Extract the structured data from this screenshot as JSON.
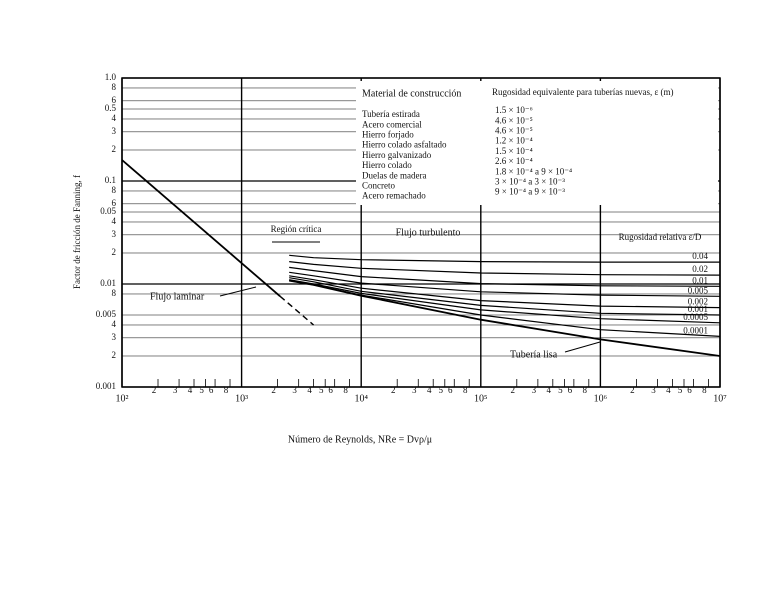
{
  "chart_data": {
    "type": "line",
    "x_label": "Número de Reynolds, NRe = Dvρ/μ",
    "y_label": "Factor de fricción de Fanning, f",
    "xlim": [
      100,
      10000000
    ],
    "ylim": [
      0.001,
      1
    ],
    "log_x": true,
    "log_y": true,
    "grid": true,
    "xticks": [
      {
        "value": 100,
        "label": "10²"
      },
      {
        "value": 200,
        "label": "2"
      },
      {
        "value": 300,
        "label": "3"
      },
      {
        "value": 400,
        "label": "4"
      },
      {
        "value": 500,
        "label": "5"
      },
      {
        "value": 600,
        "label": "6"
      },
      {
        "value": 800,
        "label": "8"
      },
      {
        "value": 1000,
        "label": "10³"
      },
      {
        "value": 2000,
        "label": "2"
      },
      {
        "value": 3000,
        "label": "3"
      },
      {
        "value": 4000,
        "label": "4"
      },
      {
        "value": 5000,
        "label": "5"
      },
      {
        "value": 6000,
        "label": "6"
      },
      {
        "value": 8000,
        "label": "8"
      },
      {
        "value": 10000,
        "label": "10⁴"
      },
      {
        "value": 20000,
        "label": "2"
      },
      {
        "value": 30000,
        "label": "3"
      },
      {
        "value": 40000,
        "label": "4"
      },
      {
        "value": 50000,
        "label": "5"
      },
      {
        "value": 60000,
        "label": "6"
      },
      {
        "value": 80000,
        "label": "8"
      },
      {
        "value": 100000,
        "label": "10⁵"
      },
      {
        "value": 200000,
        "label": "2"
      },
      {
        "value": 300000,
        "label": "3"
      },
      {
        "value": 400000,
        "label": "4"
      },
      {
        "value": 500000,
        "label": "5"
      },
      {
        "value": 600000,
        "label": "6"
      },
      {
        "value": 800000,
        "label": "8"
      },
      {
        "value": 1000000,
        "label": "10⁶"
      },
      {
        "value": 2000000,
        "label": "2"
      },
      {
        "value": 3000000,
        "label": "3"
      },
      {
        "value": 4000000,
        "label": "4"
      },
      {
        "value": 5000000,
        "label": "5"
      },
      {
        "value": 6000000,
        "label": "6"
      },
      {
        "value": 8000000,
        "label": "8"
      },
      {
        "value": 10000000,
        "label": "10⁷"
      }
    ],
    "yticks": [
      {
        "value": 1,
        "label": "1.0"
      },
      {
        "value": 0.8,
        "label": "8"
      },
      {
        "value": 0.6,
        "label": "6"
      },
      0.5,
      {
        "value": 0.4,
        "label": "4"
      },
      {
        "value": 0.3,
        "label": "3"
      },
      {
        "value": 0.2,
        "label": "2"
      },
      0.1,
      {
        "value": 0.08,
        "label": "8"
      },
      {
        "value": 0.06,
        "label": "6"
      },
      0.05,
      {
        "value": 0.04,
        "label": "4"
      },
      {
        "value": 0.03,
        "label": "3"
      },
      {
        "value": 0.02,
        "label": "2"
      },
      0.01,
      {
        "value": 0.008,
        "label": "8"
      },
      0.005,
      {
        "value": 0.004,
        "label": "4"
      },
      {
        "value": 0.003,
        "label": "3"
      },
      {
        "value": 0.002,
        "label": "2"
      },
      0.001
    ],
    "laminar": {
      "name": "Flujo laminar",
      "color": "#000000",
      "x": [
        100,
        2100
      ],
      "values": [
        0.16,
        0.0076
      ],
      "dashed_x": [
        2100,
        4000
      ],
      "dashed_values": [
        0.0076,
        0.004
      ]
    },
    "x": [
      2500,
      4000,
      10000,
      100000,
      1000000,
      10000000
    ],
    "series": [
      {
        "name": "0.04",
        "color": "#000000",
        "values": [
          0.019,
          0.018,
          0.0172,
          0.0165,
          0.0163,
          0.0163
        ]
      },
      {
        "name": "0.02",
        "color": "#000000",
        "values": [
          0.0165,
          0.0155,
          0.0142,
          0.0128,
          0.0123,
          0.0122
        ]
      },
      {
        "name": "0.01",
        "color": "#000000",
        "values": [
          0.0145,
          0.0135,
          0.0118,
          0.0101,
          0.0096,
          0.0095
        ]
      },
      {
        "name": "0.005",
        "color": "#000000",
        "values": [
          0.013,
          0.012,
          0.0102,
          0.0084,
          0.0078,
          0.0076
        ]
      },
      {
        "name": "0.002",
        "color": "#000000",
        "values": [
          0.012,
          0.011,
          0.0091,
          0.0069,
          0.0061,
          0.0059
        ]
      },
      {
        "name": "0.001",
        "color": "#000000",
        "values": [
          0.0115,
          0.0105,
          0.0085,
          0.0062,
          0.0052,
          0.005
        ]
      },
      {
        "name": "0.0005",
        "color": "#000000",
        "values": [
          0.011,
          0.01,
          0.0081,
          0.0056,
          0.0046,
          0.0042
        ]
      },
      {
        "name": "0.0001",
        "color": "#000000",
        "values": [
          0.0108,
          0.0098,
          0.0078,
          0.005,
          0.0036,
          0.0031
        ]
      },
      {
        "name": "Tubería lisa",
        "color": "#000000",
        "values": [
          0.0108,
          0.0098,
          0.0077,
          0.0045,
          0.0029,
          0.002
        ]
      }
    ],
    "annotations": [
      "Región crítica",
      "Flujo turbulento",
      "Rugosidad relativa ε/D"
    ],
    "table": {
      "headers": [
        "Material de construcción",
        "Rugosidad equivalente para tuberías nuevas, ε (m)"
      ],
      "rows": [
        [
          "Tubería estirada",
          "1.5 × 10⁻⁶"
        ],
        [
          "Acero comercial",
          "4.6 × 10⁻⁵"
        ],
        [
          "Hierro forjado",
          "4.6 × 10⁻⁵"
        ],
        [
          "Hierro colado asfaltado",
          "1.2 × 10⁻⁴"
        ],
        [
          "Hierro galvanizado",
          "1.5 × 10⁻⁴"
        ],
        [
          "Hierro colado",
          "2.6 × 10⁻⁴"
        ],
        [
          "Duelas de madera",
          "1.8 × 10⁻⁴ a 9 × 10⁻⁴"
        ],
        [
          "Concreto",
          "3 × 10⁻⁴ a 3 × 10⁻³"
        ],
        [
          "Acero remachado",
          "9 × 10⁻⁴ a 9 × 10⁻³"
        ]
      ]
    }
  }
}
